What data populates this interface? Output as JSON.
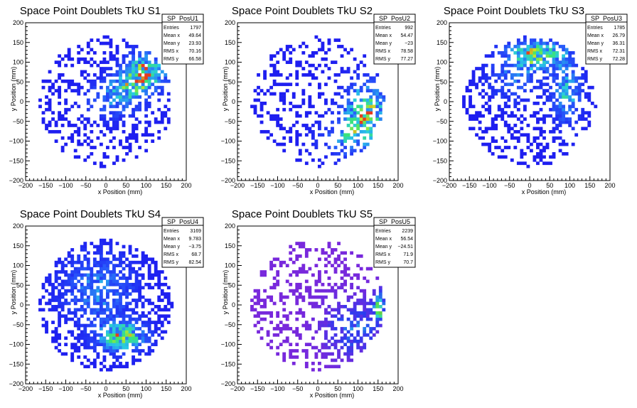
{
  "chart_data": [
    {
      "type": "heatmap",
      "title": "Space Point Doublets TkU S1",
      "xlabel": "x Position (mm)",
      "ylabel": "y Position (mm)",
      "xlim": [
        -200,
        200
      ],
      "ylim": [
        -200,
        200
      ],
      "x_ticks": [
        "−200",
        "−150",
        "−100",
        "−50",
        "0",
        "50",
        "100",
        "150",
        "200"
      ],
      "y_ticks": [
        "−200",
        "−150",
        "−100",
        "−50",
        "0",
        "50",
        "100",
        "150",
        "200"
      ],
      "stats": {
        "name": "SP_PosU1",
        "rows": [
          {
            "label": "Entries",
            "value": "1797"
          },
          {
            "label": "Mean x",
            "value": "49.64"
          },
          {
            "label": "Mean y",
            "value": "23.93"
          },
          {
            "label": "RMS x",
            "value": "70.16"
          },
          {
            "label": "RMS y",
            "value": "66.58"
          }
        ]
      },
      "hotspots": [
        {
          "x": 100,
          "y": 80,
          "sx": 35,
          "sy": 30,
          "amp": 1.0
        },
        {
          "x": 60,
          "y": 40,
          "sx": 40,
          "sy": 25,
          "amp": 0.6
        },
        {
          "x": 20,
          "y": 0,
          "sx": 50,
          "sy": 30,
          "amp": 0.4
        }
      ],
      "density": 0.6,
      "color_scale": "blue-to-red",
      "seed": 11
    },
    {
      "type": "heatmap",
      "title": "Space Point Doublets TkU S2",
      "xlabel": "x Position (mm)",
      "ylabel": "y Position (mm)",
      "xlim": [
        -200,
        200
      ],
      "ylim": [
        -200,
        200
      ],
      "x_ticks": [
        "−200",
        "−150",
        "−100",
        "−50",
        "0",
        "50",
        "100",
        "150",
        "200"
      ],
      "y_ticks": [
        "−200",
        "−150",
        "−100",
        "−50",
        "0",
        "50",
        "100",
        "150",
        "200"
      ],
      "stats": {
        "name": "SP_PosU2",
        "rows": [
          {
            "label": "Entries",
            "value": "992"
          },
          {
            "label": "Mean x",
            "value": "54.47"
          },
          {
            "label": "Mean y",
            "value": "−23"
          },
          {
            "label": "RMS x",
            "value": "78.58"
          },
          {
            "label": "RMS y",
            "value": "77.27"
          }
        ]
      },
      "hotspots": [
        {
          "x": 120,
          "y": -20,
          "sx": 35,
          "sy": 45,
          "amp": 1.0
        },
        {
          "x": 80,
          "y": -90,
          "sx": 45,
          "sy": 35,
          "amp": 0.6
        }
      ],
      "density": 0.45,
      "color_scale": "blue-to-red",
      "seed": 23
    },
    {
      "type": "heatmap",
      "title": "Space Point Doublets TkU S3",
      "xlabel": "x Position (mm)",
      "ylabel": "y Position (mm)",
      "xlim": [
        -200,
        200
      ],
      "ylim": [
        -200,
        200
      ],
      "x_ticks": [
        "−200",
        "−150",
        "−100",
        "−50",
        "0",
        "50",
        "100",
        "150",
        "200"
      ],
      "y_ticks": [
        "−200",
        "−150",
        "−100",
        "−50",
        "0",
        "50",
        "100",
        "150",
        "200"
      ],
      "stats": {
        "name": "SP_PosU3",
        "rows": [
          {
            "label": "Entries",
            "value": "1785"
          },
          {
            "label": "Mean x",
            "value": "26.79"
          },
          {
            "label": "Mean y",
            "value": "36.31"
          },
          {
            "label": "RMS x",
            "value": "72.31"
          },
          {
            "label": "RMS y",
            "value": "72.28"
          }
        ]
      },
      "hotspots": [
        {
          "x": 20,
          "y": 120,
          "sx": 50,
          "sy": 25,
          "amp": 1.0
        },
        {
          "x": 90,
          "y": 20,
          "sx": 25,
          "sy": 50,
          "amp": 0.7
        },
        {
          "x": -40,
          "y": 60,
          "sx": 40,
          "sy": 40,
          "amp": 0.4
        }
      ],
      "density": 0.6,
      "color_scale": "blue-to-red",
      "seed": 37
    },
    {
      "type": "heatmap",
      "title": "Space Point Doublets TkU S4",
      "xlabel": "x Position (mm)",
      "ylabel": "y Position (mm)",
      "xlim": [
        -200,
        200
      ],
      "ylim": [
        -200,
        200
      ],
      "x_ticks": [
        "−200",
        "−150",
        "−100",
        "−50",
        "0",
        "50",
        "100",
        "150",
        "200"
      ],
      "y_ticks": [
        "−200",
        "−150",
        "−100",
        "−50",
        "0",
        "50",
        "100",
        "150",
        "200"
      ],
      "stats": {
        "name": "SP_PosU4",
        "rows": [
          {
            "label": "Entries",
            "value": "3169"
          },
          {
            "label": "Mean x",
            "value": "9.783"
          },
          {
            "label": "Mean y",
            "value": "−3.75"
          },
          {
            "label": "RMS x",
            "value": "68.7"
          },
          {
            "label": "RMS y",
            "value": "82.54"
          }
        ]
      },
      "hotspots": [
        {
          "x": 40,
          "y": -80,
          "sx": 40,
          "sy": 25,
          "amp": 1.0
        },
        {
          "x": -20,
          "y": 40,
          "sx": 60,
          "sy": 60,
          "amp": 0.5
        }
      ],
      "density": 0.8,
      "color_scale": "blue-to-red",
      "seed": 41
    },
    {
      "type": "heatmap",
      "title": "Space Point Doublets TkU S5",
      "xlabel": "x Position (mm)",
      "ylabel": "y Position (mm)",
      "xlim": [
        -200,
        200
      ],
      "ylim": [
        -200,
        200
      ],
      "x_ticks": [
        "−200",
        "−150",
        "−100",
        "−50",
        "0",
        "50",
        "100",
        "150",
        "200"
      ],
      "y_ticks": [
        "−200",
        "−150",
        "−100",
        "−50",
        "0",
        "50",
        "100",
        "150",
        "200"
      ],
      "stats": {
        "name": "SP_PosU5",
        "rows": [
          {
            "label": "Entries",
            "value": "2239"
          },
          {
            "label": "Mean x",
            "value": "56.54"
          },
          {
            "label": "Mean y",
            "value": "−24.51"
          },
          {
            "label": "RMS x",
            "value": "71.9"
          },
          {
            "label": "RMS y",
            "value": "70.7"
          }
        ]
      },
      "hotspots": [
        {
          "x": 155,
          "y": 0,
          "sx": 12,
          "sy": 25,
          "amp": 1.0
        },
        {
          "x": 90,
          "y": -60,
          "sx": 50,
          "sy": 50,
          "amp": 0.5
        }
      ],
      "density": 0.55,
      "color_scale": "violet-to-red",
      "seed": 53
    }
  ]
}
